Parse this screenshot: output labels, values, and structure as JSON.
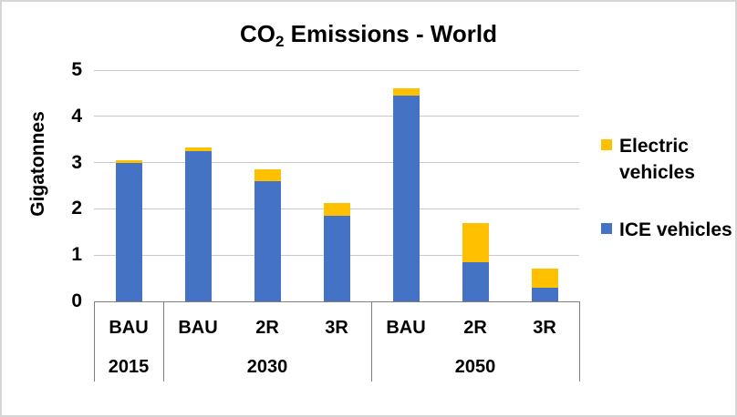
{
  "colors": {
    "ice_blue": "#4472C4",
    "ev_yellow": "#FFC000",
    "gridline": "#C9C9C9",
    "axis_line": "#7F7F7F",
    "background": "#FFFFFF"
  },
  "chart_data": {
    "type": "bar",
    "stacked": true,
    "title": {
      "prefix": "CO",
      "subscript": "2",
      "suffix": " Emissions - World"
    },
    "xlabel": "",
    "ylabel": "Gigatonnes",
    "ylim": [
      0,
      5
    ],
    "yticks": [
      0,
      1,
      2,
      3,
      4,
      5
    ],
    "grid": true,
    "legend_position": "right",
    "categories": [
      "BAU 2015",
      "BAU 2030",
      "2R 2030",
      "3R 2030",
      "BAU 2050",
      "2R 2050",
      "3R 2050"
    ],
    "groups": [
      {
        "year": "2015",
        "scenarios": [
          "BAU"
        ]
      },
      {
        "year": "2030",
        "scenarios": [
          "BAU",
          "2R",
          "3R"
        ]
      },
      {
        "year": "2050",
        "scenarios": [
          "BAU",
          "2R",
          "3R"
        ]
      }
    ],
    "series": [
      {
        "name": "ICE vehicles",
        "color": "#4472C4",
        "values": [
          3.0,
          3.25,
          2.6,
          1.85,
          4.45,
          0.85,
          0.3
        ]
      },
      {
        "name": "Electric vehicles",
        "color": "#FFC000",
        "values": [
          0.05,
          0.08,
          0.25,
          0.28,
          0.15,
          0.85,
          0.4
        ]
      }
    ],
    "legend": [
      {
        "label": "Electric vehicles",
        "color": "#FFC000"
      },
      {
        "label": "ICE vehicles",
        "color": "#4472C4"
      }
    ]
  }
}
